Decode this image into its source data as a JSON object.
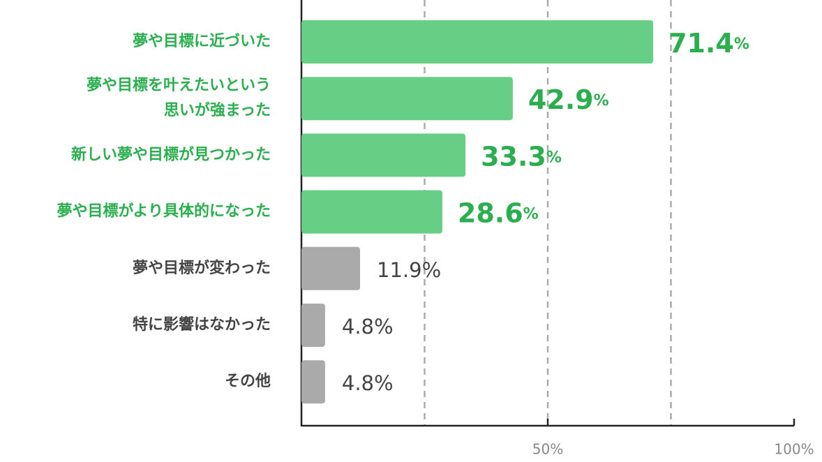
{
  "chart_data": {
    "type": "barh",
    "categories": [
      "夢や目標に近づいた",
      "夢や目標を叶えたいという\n思いが強まった",
      "新しい夢や目標が見つかった",
      "夢や目標がより具体的になった",
      "夢や目標が変わった",
      "特に影響はなかった",
      "その他"
    ],
    "values": [
      71.4,
      42.9,
      33.3,
      28.6,
      11.9,
      4.8,
      4.8
    ],
    "value_labels": [
      "71.4%",
      "42.9%",
      "33.3%",
      "28.6%",
      "11.9%",
      "4.8%",
      "4.8%"
    ],
    "colors": [
      "#66cf85",
      "#66cf85",
      "#66cf85",
      "#66cf85",
      "#aaaaaa",
      "#aaaaaa",
      "#aaaaaa"
    ],
    "label_colors": [
      "#2aae4e",
      "#2aae4e",
      "#2aae4e",
      "#2aae4e",
      "#444444",
      "#444444",
      "#444444"
    ],
    "xlim": [
      0,
      100
    ],
    "xticks": [
      {
        "value": 50,
        "label": "50%"
      },
      {
        "value": 100,
        "label": "100%"
      }
    ],
    "xgrid": [
      25,
      50,
      75
    ]
  }
}
